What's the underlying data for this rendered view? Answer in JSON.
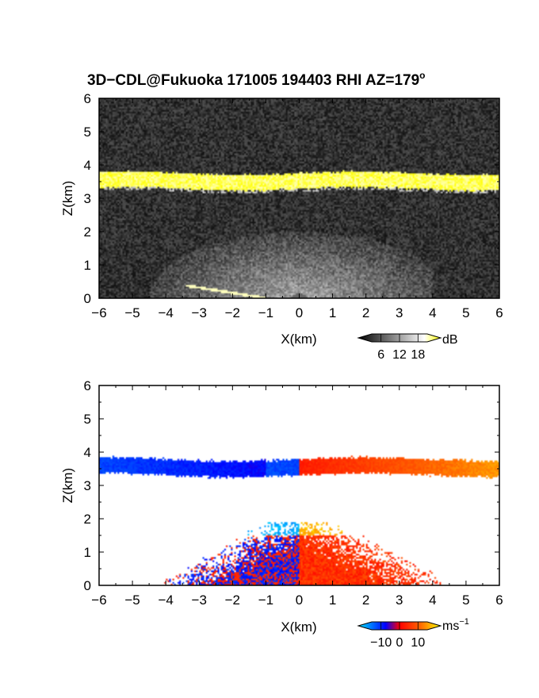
{
  "chart_data": [
    {
      "type": "heatmap",
      "panel": "reflectivity",
      "title": "3D−CDL@Fukuoka 171005 194403 RHI AZ=179",
      "title_superscript": "o",
      "xlabel": "X(km)",
      "ylabel": "Z(km)",
      "xlim": [
        -6,
        6
      ],
      "ylim": [
        0,
        6
      ],
      "x_ticks": [
        "−6",
        "−5",
        "−4",
        "−3",
        "−2",
        "−1",
        "0",
        "1",
        "2",
        "3",
        "4",
        "5",
        "6"
      ],
      "y_ticks": [
        "0",
        "1",
        "2",
        "3",
        "4",
        "5",
        "6"
      ],
      "colorbar": {
        "unit": "dB",
        "ticks": [
          "6",
          "12",
          "18"
        ],
        "range": [
          3,
          21
        ],
        "colors": [
          "#000000",
          "#ffffff",
          "#ffff00"
        ]
      },
      "features": [
        {
          "name": "cloud-base layer",
          "x_range": [
            -6,
            6
          ],
          "z_range": [
            3.3,
            3.75
          ],
          "value": 19
        },
        {
          "name": "boundary-layer echo",
          "x_range": [
            -4.5,
            4
          ],
          "z_range": [
            0,
            2
          ],
          "value": 10
        },
        {
          "name": "ground clutter line",
          "x_range": [
            -3.4,
            -1
          ],
          "z_range": [
            0,
            0.5
          ],
          "value": 19
        }
      ]
    },
    {
      "type": "heatmap",
      "panel": "doppler-velocity",
      "xlabel": "X(km)",
      "ylabel": "Z(km)",
      "xlim": [
        -6,
        6
      ],
      "ylim": [
        0,
        6
      ],
      "x_ticks": [
        "−6",
        "−5",
        "−4",
        "−3",
        "−2",
        "−1",
        "0",
        "1",
        "2",
        "3",
        "4",
        "5",
        "6"
      ],
      "y_ticks": [
        "0",
        "1",
        "2",
        "3",
        "4",
        "5",
        "6"
      ],
      "colorbar": {
        "unit": "ms",
        "unit_superscript": "−1",
        "ticks": [
          "−10",
          "0",
          "10"
        ],
        "range": [
          -15,
          15
        ],
        "colors": [
          "#00e5ff",
          "#0000ff",
          "#ff0000",
          "#ffff00"
        ]
      },
      "features": [
        {
          "name": "cloud-base layer",
          "x_range": [
            -6,
            6
          ],
          "z_range": [
            3.3,
            3.85
          ],
          "velocity_left": -8,
          "velocity_right": 10
        },
        {
          "name": "boundary-layer echo",
          "x_range": [
            -3.8,
            4.3
          ],
          "z_range": [
            0,
            1.9
          ],
          "velocity_left": -5,
          "velocity_right": 6
        }
      ]
    }
  ]
}
